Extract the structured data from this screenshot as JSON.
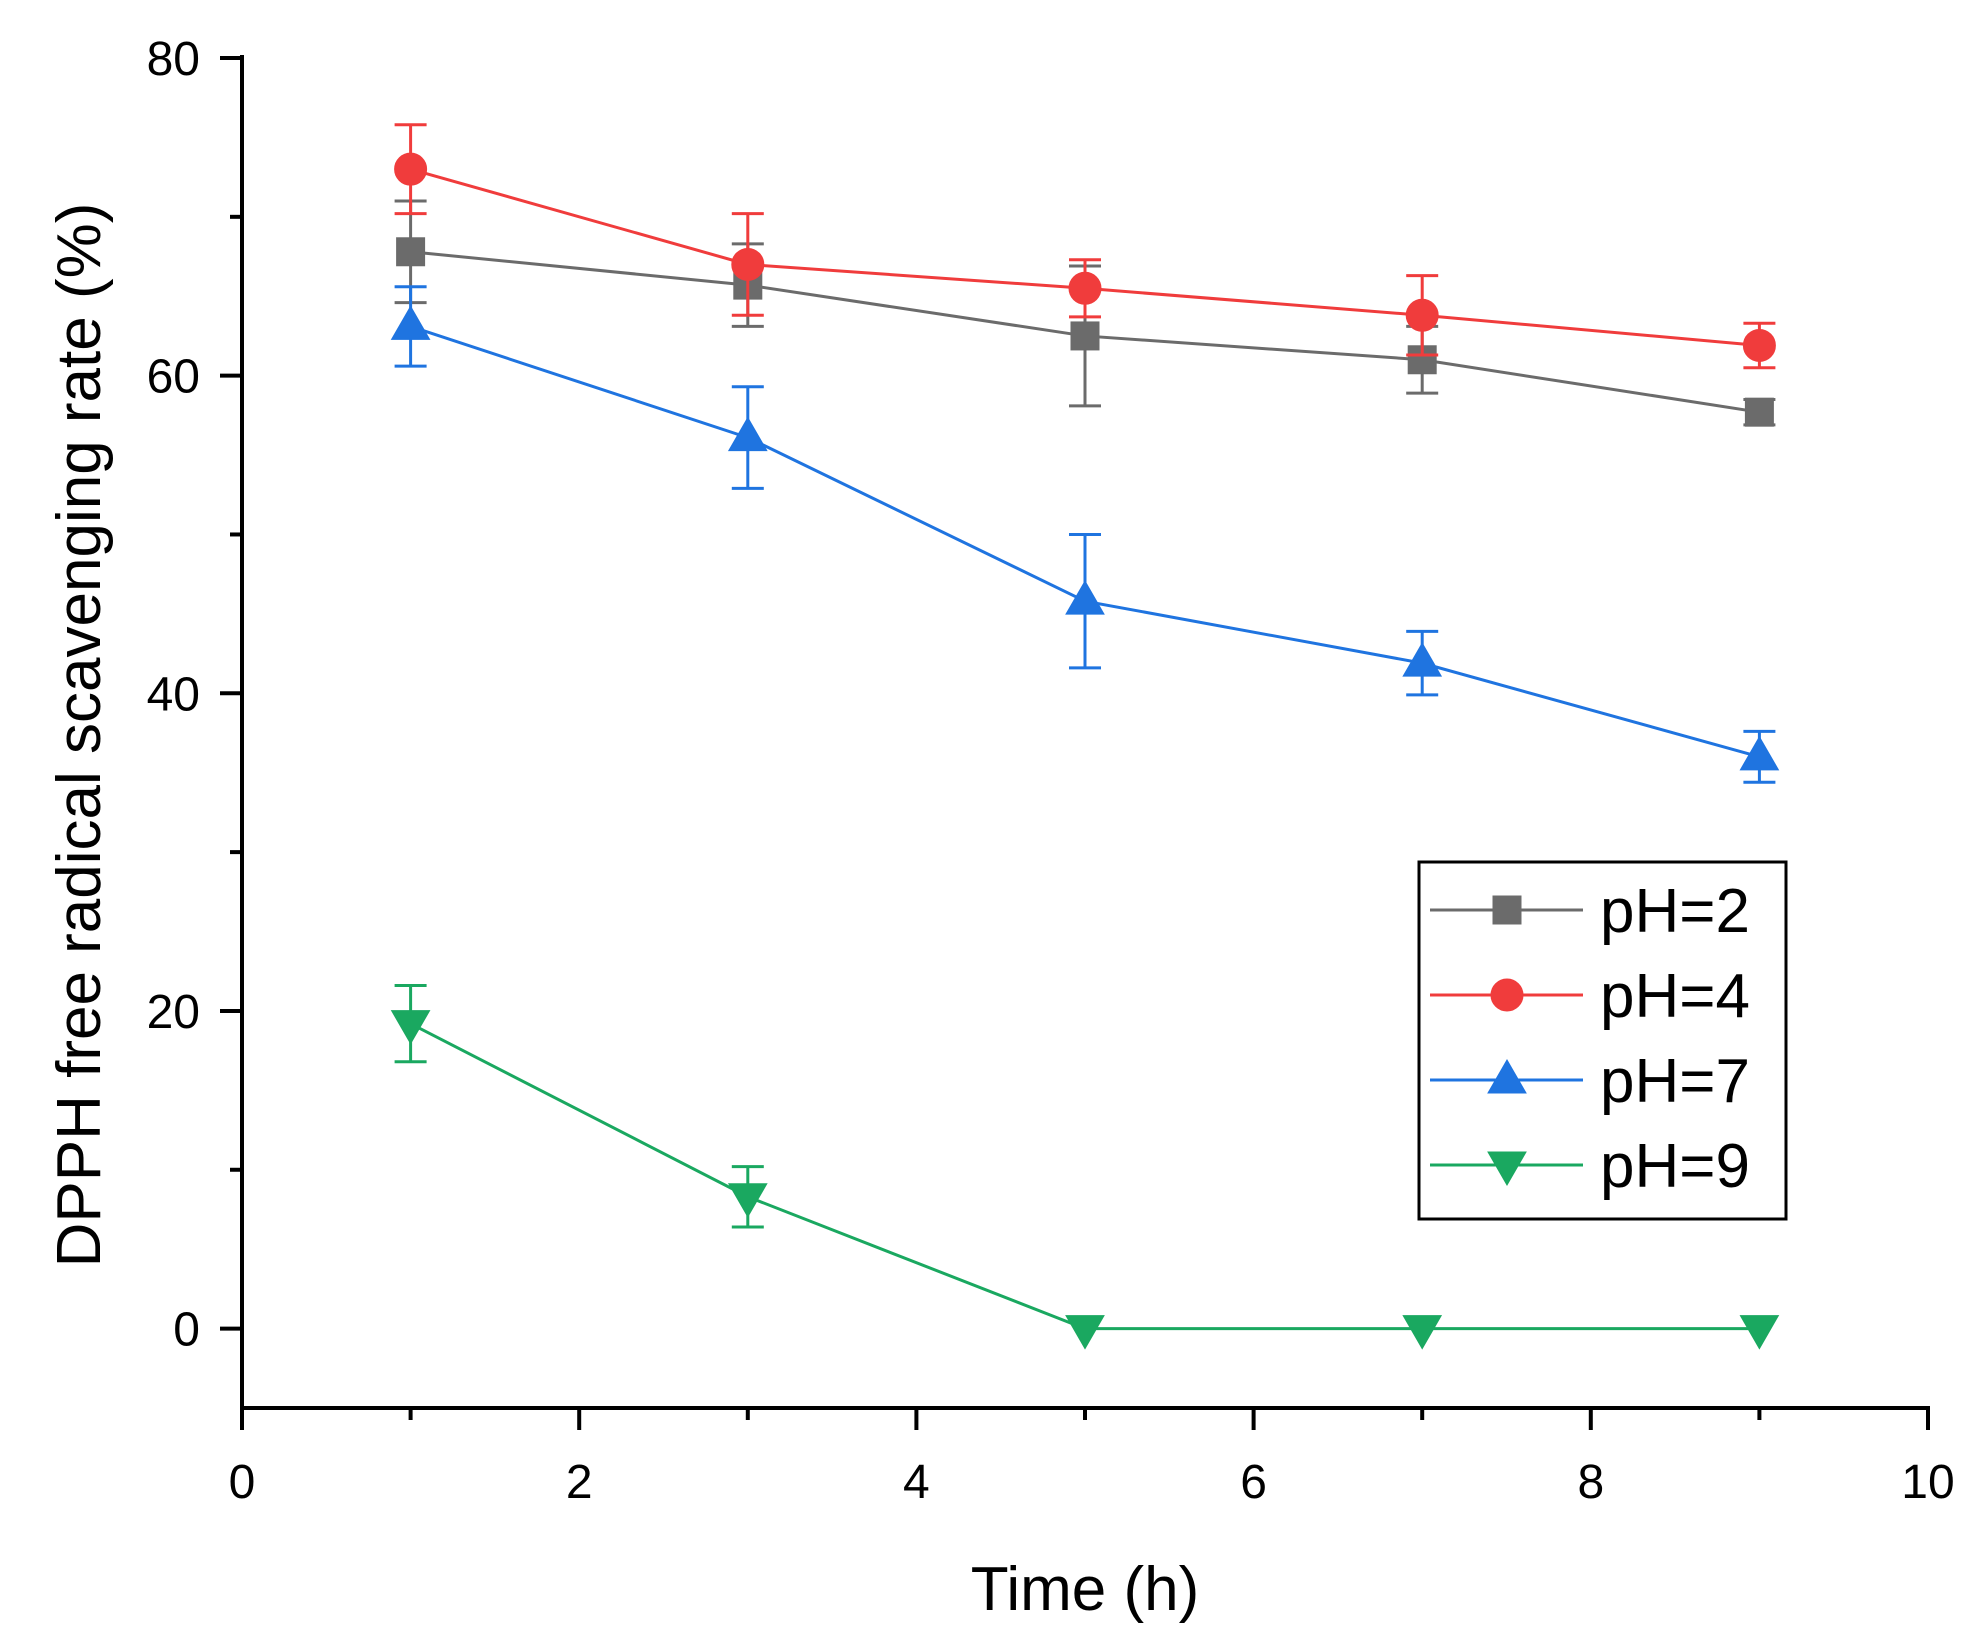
{
  "chart_data": {
    "type": "line",
    "title": "",
    "xlabel": "Time (h)",
    "ylabel": "DPPH free radical scavenging rate (%)",
    "xlim": [
      0,
      10
    ],
    "ylim": [
      -5,
      80
    ],
    "xticks": [
      0,
      2,
      4,
      6,
      8,
      10
    ],
    "xtick_labels": [
      "0",
      "2",
      "4",
      "6",
      "8",
      "10"
    ],
    "yticks": [
      0,
      20,
      40,
      60,
      80
    ],
    "ytick_labels": [
      "0",
      "20",
      "40",
      "60",
      "80"
    ],
    "grid": false,
    "legend_position": "right",
    "x": [
      1,
      3,
      5,
      7,
      9
    ],
    "series": [
      {
        "name": "pH=2",
        "color": "#6b6b6b",
        "marker": "square",
        "values": [
          67.8,
          65.7,
          62.5,
          61.0,
          57.7
        ],
        "errors": [
          3.2,
          2.6,
          4.4,
          2.1,
          0.8
        ]
      },
      {
        "name": "pH=4",
        "color": "#f03c3c",
        "marker": "circle",
        "values": [
          73.0,
          67.0,
          65.5,
          63.8,
          61.9
        ],
        "errors": [
          2.8,
          3.2,
          1.8,
          2.5,
          1.4
        ]
      },
      {
        "name": "pH=7",
        "color": "#1f74e0",
        "marker": "triangle-up",
        "values": [
          63.1,
          56.1,
          45.8,
          41.9,
          36.0
        ],
        "errors": [
          2.5,
          3.2,
          4.2,
          2.0,
          1.6
        ]
      },
      {
        "name": "pH=9",
        "color": "#1aa860",
        "marker": "triangle-down",
        "values": [
          19.2,
          8.3,
          0,
          0,
          0
        ],
        "errors": [
          2.4,
          1.9,
          0,
          0,
          0
        ]
      }
    ]
  }
}
